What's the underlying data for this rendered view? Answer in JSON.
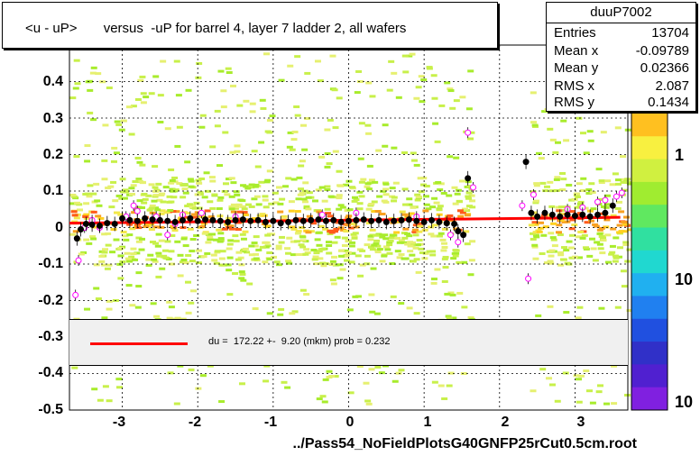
{
  "title": "<u - uP>       versus  -uP for barrel 4, layer 7 ladder 2, all wafers",
  "stats": {
    "name": "duuP7002",
    "rows": [
      {
        "k": "Entries",
        "v": "13704"
      },
      {
        "k": "Mean x",
        "v": "-0.09789"
      },
      {
        "k": "Mean y",
        "v": "0.02366"
      },
      {
        "k": "RMS x",
        "v": "2.087"
      },
      {
        "k": "RMS y",
        "v": "0.1434"
      }
    ]
  },
  "fit_text": "du =  172.22 +-  9.20 (mkm) prob = 0.232",
  "xlabel": "../Pass54_NoFieldPlotsG40GNFP25rCut0.5cm.root",
  "colors": {
    "fit": "#ff0000",
    "profile": "#000000",
    "open_marker": "#ff00ff"
  },
  "chart_data": {
    "type": "scatter",
    "xlim": [
      -3.7,
      3.7
    ],
    "ylim": [
      -0.5,
      0.5
    ],
    "x_ticks": [
      "-3",
      "-2",
      "-1",
      "0",
      "1",
      "2",
      "3"
    ],
    "y_ticks": [
      "0.4",
      "0.3",
      "0.2",
      "0.1",
      "0",
      "-0.1",
      "-0.2",
      "-0.3",
      "-0.4",
      "-0.5"
    ],
    "z_ticks": [
      "1",
      "10",
      "10"
    ],
    "grid": true,
    "profile_points": [
      [
        -3.6,
        -0.03
      ],
      [
        -3.55,
        -0.005
      ],
      [
        -3.48,
        0.01
      ],
      [
        -3.4,
        0.008
      ],
      [
        -3.3,
        0.005
      ],
      [
        -3.2,
        0.012
      ],
      [
        -3.1,
        0.01
      ],
      [
        -3.0,
        0.025
      ],
      [
        -2.9,
        0.02
      ],
      [
        -2.8,
        0.018
      ],
      [
        -2.7,
        0.025
      ],
      [
        -2.6,
        0.022
      ],
      [
        -2.5,
        0.02
      ],
      [
        -2.4,
        0.018
      ],
      [
        -2.3,
        0.015
      ],
      [
        -2.2,
        0.02
      ],
      [
        -2.1,
        0.025
      ],
      [
        -2.0,
        0.018
      ],
      [
        -1.9,
        0.022
      ],
      [
        -1.8,
        0.02
      ],
      [
        -1.7,
        0.018
      ],
      [
        -1.6,
        0.015
      ],
      [
        -1.5,
        0.02
      ],
      [
        -1.4,
        0.022
      ],
      [
        -1.3,
        0.018
      ],
      [
        -1.2,
        0.02
      ],
      [
        -1.1,
        0.015
      ],
      [
        -1.0,
        0.018
      ],
      [
        -0.9,
        0.012
      ],
      [
        -0.8,
        0.015
      ],
      [
        -0.7,
        0.02
      ],
      [
        -0.6,
        0.018
      ],
      [
        -0.5,
        0.02
      ],
      [
        -0.4,
        0.022
      ],
      [
        -0.3,
        0.018
      ],
      [
        -0.2,
        0.02
      ],
      [
        -0.1,
        0.015
      ],
      [
        0.0,
        0.018
      ],
      [
        0.1,
        0.02
      ],
      [
        0.2,
        0.022
      ],
      [
        0.3,
        0.018
      ],
      [
        0.4,
        0.02
      ],
      [
        0.5,
        0.015
      ],
      [
        0.6,
        0.018
      ],
      [
        0.7,
        0.02
      ],
      [
        0.8,
        0.022
      ],
      [
        0.9,
        0.018
      ],
      [
        1.0,
        0.015
      ],
      [
        1.1,
        0.02
      ],
      [
        1.2,
        0.015
      ],
      [
        1.3,
        0.012
      ],
      [
        1.4,
        0.01
      ],
      [
        1.45,
        -0.01
      ],
      [
        1.52,
        -0.02
      ],
      [
        1.58,
        0.135
      ],
      [
        2.35,
        0.18
      ],
      [
        2.42,
        0.04
      ],
      [
        2.5,
        0.03
      ],
      [
        2.6,
        0.04
      ],
      [
        2.7,
        0.035
      ],
      [
        2.8,
        0.03
      ],
      [
        2.9,
        0.035
      ],
      [
        3.0,
        0.032
      ],
      [
        3.1,
        0.035
      ],
      [
        3.2,
        0.03
      ],
      [
        3.3,
        0.035
      ],
      [
        3.4,
        0.04
      ],
      [
        3.5,
        0.06
      ]
    ],
    "open_points": [
      [
        -3.62,
        -0.185
      ],
      [
        -3.58,
        -0.09
      ],
      [
        -3.5,
        0.0
      ],
      [
        -3.4,
        0.02
      ],
      [
        -3.3,
        0.0
      ],
      [
        -2.95,
        0.03
      ],
      [
        -2.85,
        0.06
      ],
      [
        -2.8,
        0.045
      ],
      [
        -2.55,
        0.03
      ],
      [
        -2.4,
        -0.02
      ],
      [
        -2.3,
        0.01
      ],
      [
        -2.2,
        0.035
      ],
      [
        -1.95,
        0.04
      ],
      [
        -1.5,
        0.03
      ],
      [
        -0.35,
        0.035
      ],
      [
        0.1,
        0.04
      ],
      [
        0.9,
        0.03
      ],
      [
        1.35,
        -0.02
      ],
      [
        1.45,
        -0.04
      ],
      [
        1.58,
        0.26
      ],
      [
        1.65,
        0.11
      ],
      [
        2.3,
        0.06
      ],
      [
        2.38,
        -0.14
      ],
      [
        2.45,
        0.09
      ],
      [
        2.9,
        0.05
      ],
      [
        3.1,
        0.055
      ],
      [
        3.3,
        0.07
      ],
      [
        3.4,
        0.075
      ],
      [
        3.55,
        0.085
      ],
      [
        3.62,
        0.095
      ]
    ],
    "fit_line": {
      "x0": -3.7,
      "y0": 0.012,
      "x1": 3.6,
      "y1": 0.028
    }
  }
}
